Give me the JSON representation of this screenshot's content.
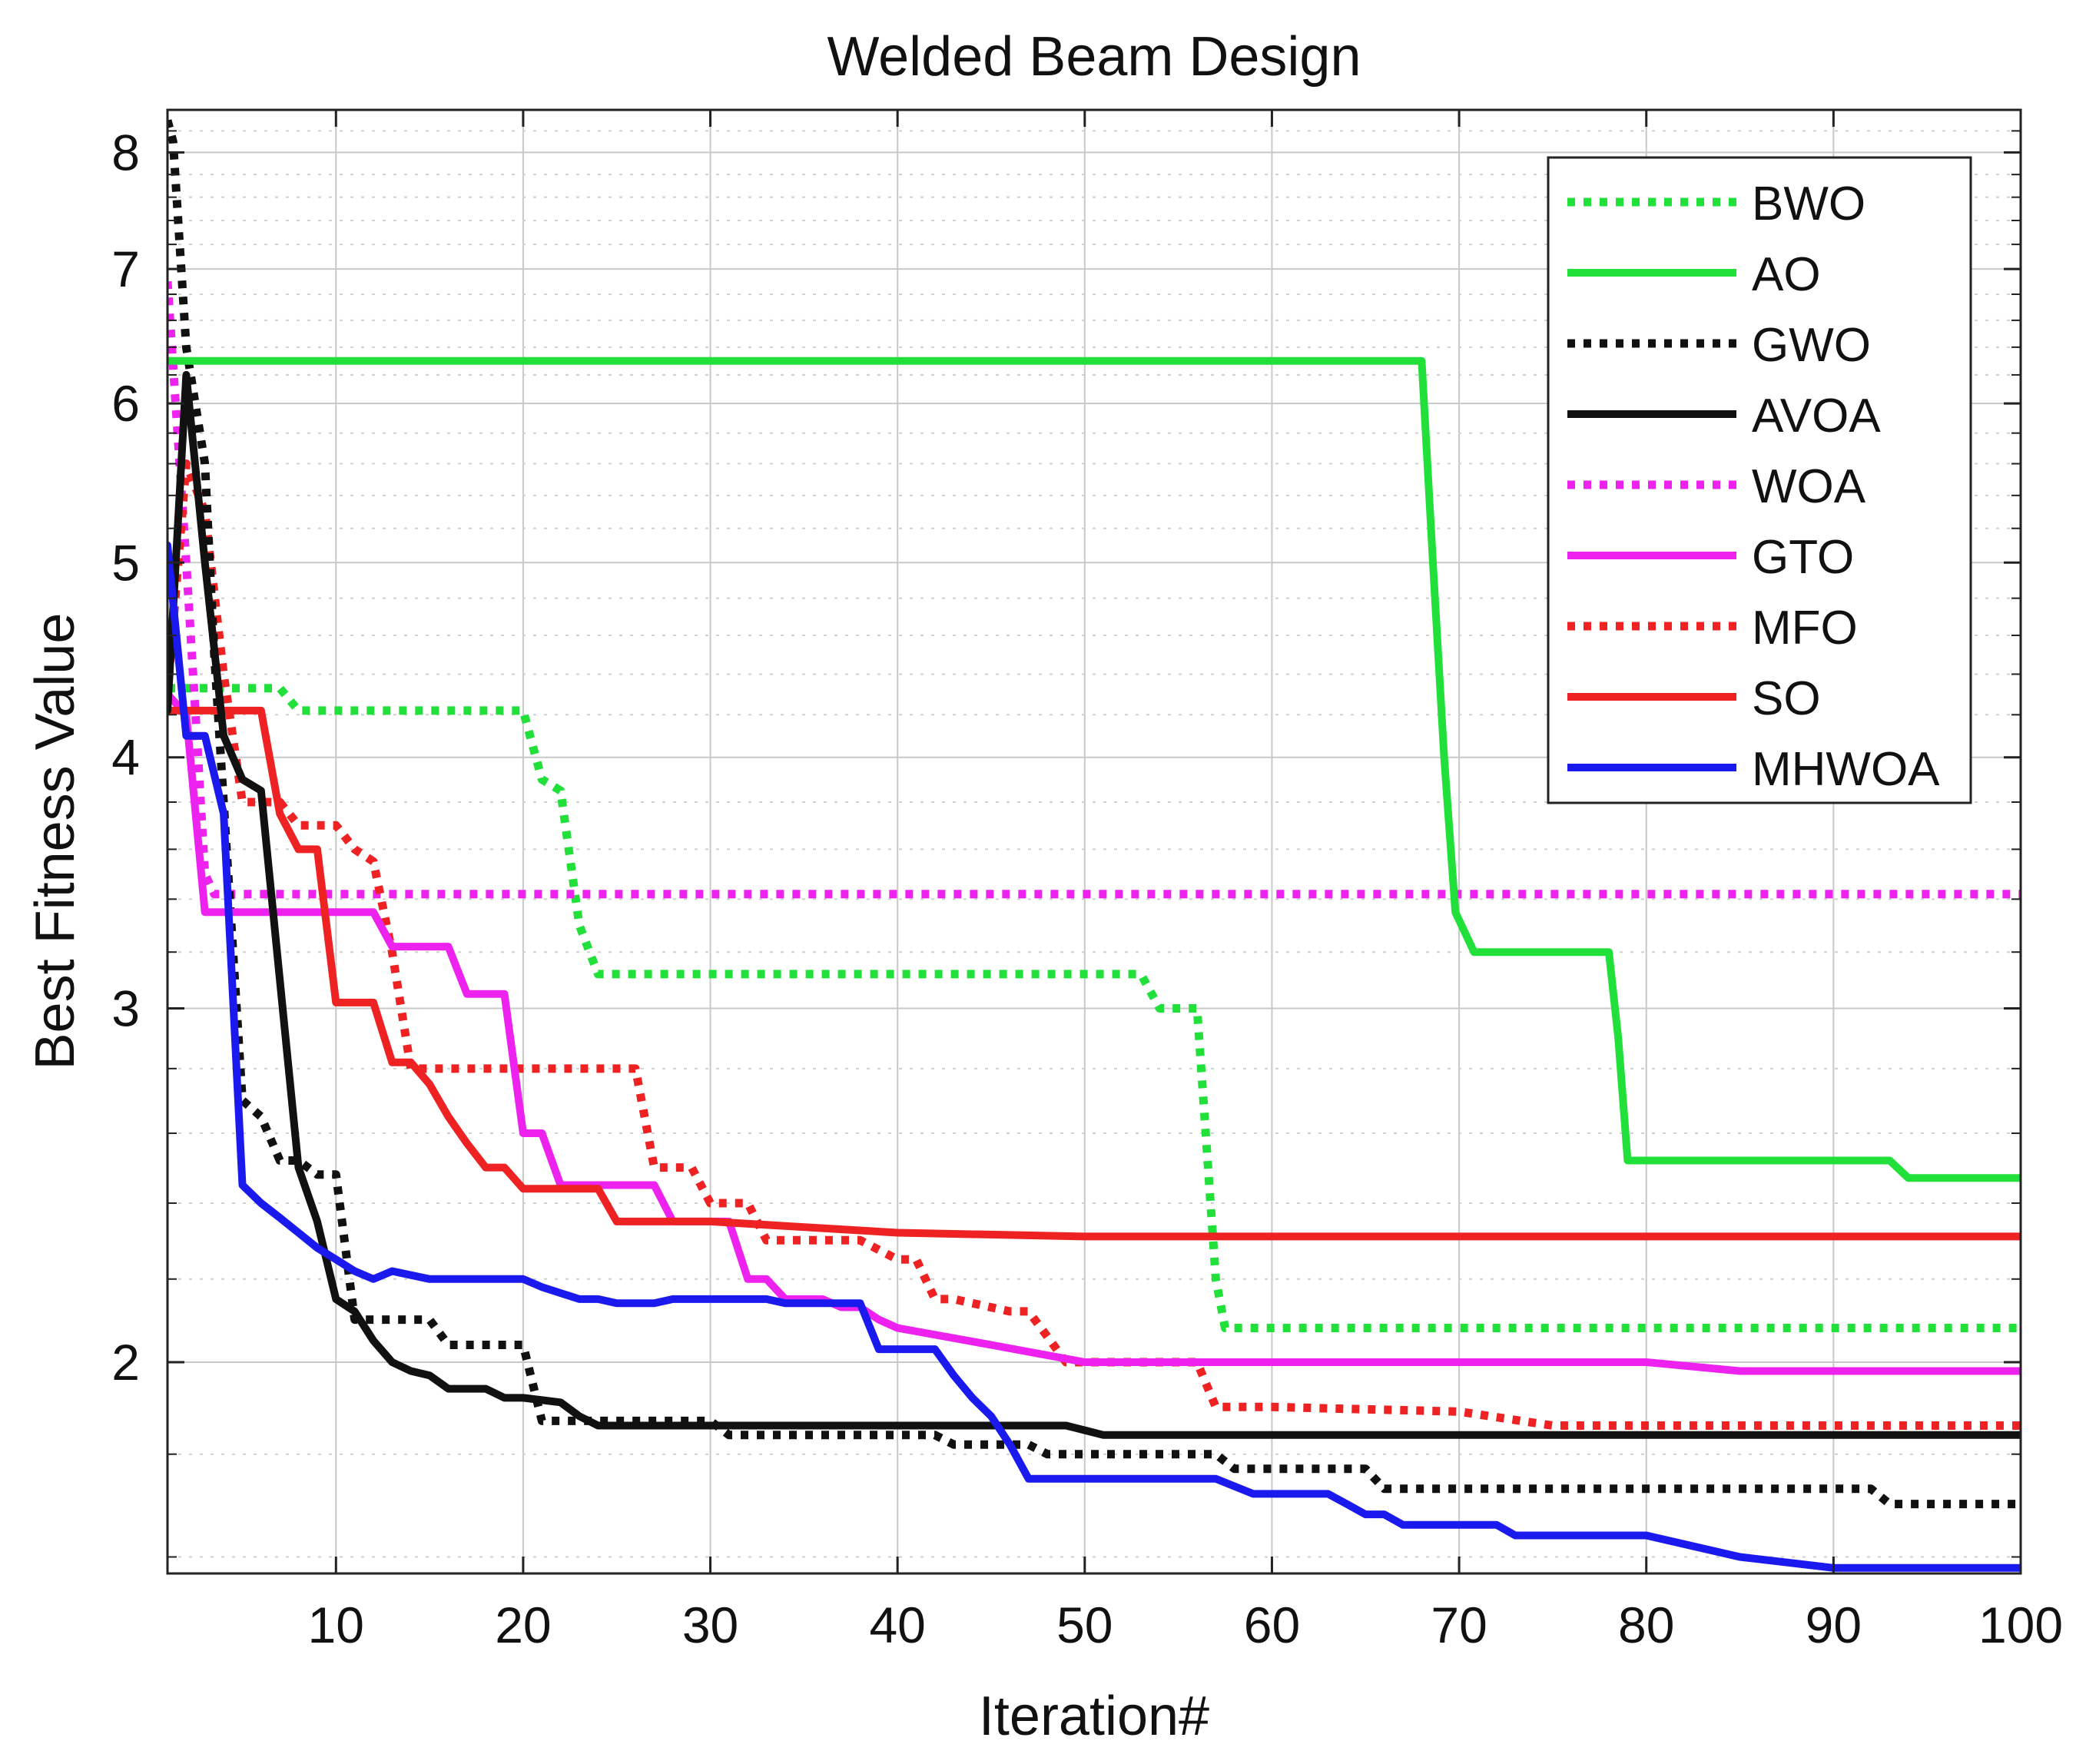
{
  "chart_data": {
    "type": "line",
    "title": "Welded Beam Design",
    "xlabel": "Iteration#",
    "ylabel": "Best Fitness Value",
    "y_scale": "log",
    "xlim": [
      1,
      100
    ],
    "ylim": [
      1.57,
      8.4
    ],
    "xticks": [
      10,
      20,
      30,
      40,
      50,
      60,
      70,
      80,
      90,
      100
    ],
    "yticks": [
      2,
      3,
      4,
      5,
      6,
      7,
      8
    ],
    "grid": true,
    "legend_position": "top-right",
    "series": [
      {
        "name": "BWO",
        "color": "#22e03a",
        "style": "dotted",
        "x": [
          1,
          7,
          8,
          20,
          21,
          22,
          23,
          24,
          53,
          54,
          56,
          57,
          57.5,
          100
        ],
        "y": [
          4.33,
          4.33,
          4.22,
          4.22,
          3.9,
          3.85,
          3.3,
          3.12,
          3.12,
          3.0,
          3.0,
          2.2,
          2.08,
          2.08
        ]
      },
      {
        "name": "AO",
        "color": "#22e03a",
        "style": "solid",
        "x": [
          1,
          1.5,
          68,
          68.6,
          69.2,
          69.8,
          70.8,
          78,
          78.5,
          79,
          93,
          94,
          100
        ],
        "y": [
          6.3,
          6.3,
          6.3,
          5.0,
          4.0,
          3.35,
          3.2,
          3.2,
          2.9,
          2.52,
          2.52,
          2.47,
          2.47
        ]
      },
      {
        "name": "GWO",
        "color": "#111111",
        "style": "dotted",
        "x": [
          1,
          1.3,
          2,
          3,
          3.5,
          4,
          5,
          6,
          7,
          8,
          9,
          10,
          11,
          15,
          16,
          20,
          21,
          30,
          31,
          35,
          42,
          43,
          47,
          48,
          57,
          58,
          65,
          66,
          92,
          93,
          100
        ],
        "y": [
          8.3,
          8.1,
          6.4,
          5.6,
          4.5,
          3.8,
          2.7,
          2.65,
          2.52,
          2.52,
          2.48,
          2.48,
          2.1,
          2.1,
          2.04,
          2.04,
          1.87,
          1.87,
          1.84,
          1.84,
          1.84,
          1.82,
          1.82,
          1.8,
          1.8,
          1.77,
          1.77,
          1.73,
          1.73,
          1.7,
          1.7
        ]
      },
      {
        "name": "AVOA",
        "color": "#111111",
        "style": "solid",
        "x": [
          1,
          2,
          3,
          4,
          5,
          6,
          7,
          8,
          9,
          10,
          11,
          12,
          13,
          14,
          15,
          16,
          18,
          19,
          20,
          22,
          23,
          24,
          25,
          49,
          50,
          51,
          52,
          100
        ],
        "y": [
          4.22,
          6.2,
          5.0,
          4.1,
          3.9,
          3.85,
          3.1,
          2.5,
          2.35,
          2.15,
          2.12,
          2.05,
          2.0,
          1.98,
          1.97,
          1.94,
          1.94,
          1.92,
          1.92,
          1.91,
          1.88,
          1.86,
          1.86,
          1.86,
          1.85,
          1.84,
          1.84,
          1.84
        ]
      },
      {
        "name": "WOA",
        "color": "#ee22ee",
        "style": "dotted",
        "x": [
          1,
          2,
          2.5,
          3,
          3.5,
          100
        ],
        "y": [
          6.9,
          5.0,
          4.2,
          3.5,
          3.42,
          3.42
        ]
      },
      {
        "name": "GTO",
        "color": "#ee22ee",
        "style": "solid",
        "x": [
          1,
          2,
          3,
          12,
          13,
          16,
          17,
          19,
          20,
          21,
          22,
          27,
          28,
          31,
          32,
          33,
          34,
          36,
          37,
          38,
          39,
          40,
          45,
          50,
          70,
          80,
          85,
          100
        ],
        "y": [
          4.3,
          4.2,
          3.35,
          3.35,
          3.22,
          3.22,
          3.05,
          3.05,
          2.6,
          2.6,
          2.45,
          2.45,
          2.35,
          2.35,
          2.2,
          2.2,
          2.15,
          2.15,
          2.13,
          2.13,
          2.1,
          2.08,
          2.04,
          2.0,
          2.0,
          2.0,
          1.98,
          1.98
        ]
      },
      {
        "name": "MFO",
        "color": "#ee2222",
        "style": "dotted",
        "x": [
          1,
          2,
          3,
          4,
          5,
          7,
          8,
          10,
          11,
          12,
          13,
          14,
          18,
          19,
          20,
          26,
          27,
          29,
          30,
          32,
          33,
          35,
          38,
          40,
          41,
          42,
          43,
          46,
          47,
          48,
          49,
          56,
          57,
          60,
          70,
          75,
          100
        ],
        "y": [
          4.3,
          5.6,
          5.3,
          4.4,
          3.8,
          3.8,
          3.7,
          3.7,
          3.6,
          3.55,
          3.2,
          2.8,
          2.8,
          2.8,
          2.8,
          2.8,
          2.5,
          2.5,
          2.4,
          2.4,
          2.3,
          2.3,
          2.3,
          2.25,
          2.25,
          2.15,
          2.15,
          2.12,
          2.12,
          2.06,
          2.0,
          2.0,
          1.9,
          1.9,
          1.89,
          1.86,
          1.86
        ]
      },
      {
        "name": "SO",
        "color": "#ee2222",
        "style": "solid",
        "x": [
          1,
          6,
          7,
          8,
          9,
          10,
          11,
          12,
          13,
          14,
          15,
          16,
          17,
          18,
          19,
          20,
          21,
          24,
          25,
          30,
          40,
          50,
          100
        ],
        "y": [
          4.22,
          4.22,
          3.75,
          3.6,
          3.6,
          3.02,
          3.02,
          3.02,
          2.82,
          2.82,
          2.75,
          2.65,
          2.57,
          2.5,
          2.5,
          2.44,
          2.44,
          2.44,
          2.35,
          2.35,
          2.32,
          2.31,
          2.31
        ]
      },
      {
        "name": "MHWOA",
        "color": "#1a1aee",
        "style": "solid",
        "x": [
          1,
          2,
          3,
          4,
          5,
          6,
          7,
          8,
          9,
          10,
          11,
          12,
          13,
          15,
          20,
          21,
          23,
          24,
          25,
          27,
          28,
          33,
          34,
          38,
          39,
          42,
          43,
          44,
          45,
          46,
          47,
          57,
          59,
          60,
          63,
          64,
          65,
          66,
          67,
          72,
          73,
          80,
          85,
          90,
          100
        ],
        "y": [
          5.1,
          4.1,
          4.1,
          3.75,
          2.45,
          2.4,
          2.36,
          2.32,
          2.28,
          2.25,
          2.22,
          2.2,
          2.22,
          2.2,
          2.2,
          2.18,
          2.15,
          2.15,
          2.14,
          2.14,
          2.15,
          2.15,
          2.14,
          2.14,
          2.03,
          2.03,
          1.97,
          1.92,
          1.88,
          1.82,
          1.75,
          1.75,
          1.72,
          1.72,
          1.72,
          1.7,
          1.68,
          1.68,
          1.66,
          1.66,
          1.64,
          1.64,
          1.6,
          1.58,
          1.58
        ]
      }
    ]
  }
}
